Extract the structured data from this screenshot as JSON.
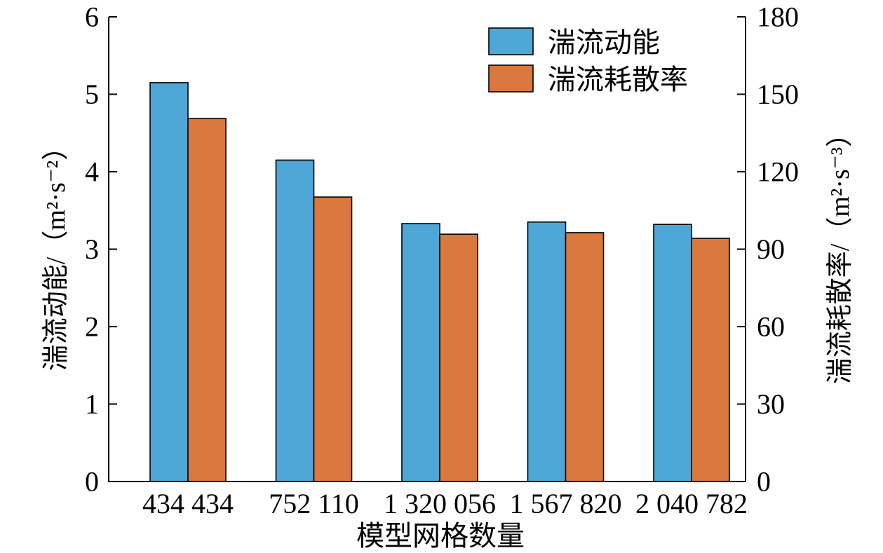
{
  "chart_data": {
    "type": "bar",
    "categories": [
      "434 434",
      "752 110",
      "1 320 056",
      "1 567 820",
      "2 040 782"
    ],
    "series": [
      {
        "name": "湍流动能",
        "secondary_axis": false,
        "color": "#4fa7d8",
        "values": [
          5.15,
          4.15,
          3.33,
          3.35,
          3.32
        ]
      },
      {
        "name": "湍流耗散率",
        "secondary_axis": true,
        "color": "#db783e",
        "values": [
          140.6,
          110.2,
          95.8,
          96.4,
          94.2
        ]
      }
    ],
    "xlabel": "模型网格数量",
    "ylabel": "湍流动能/（m²·s⁻²）",
    "y2label": "湍流耗散率/（m²·s⁻³）",
    "ylim": [
      0,
      6
    ],
    "y2lim": [
      0,
      180
    ],
    "yticks": [
      0,
      1,
      2,
      3,
      4,
      5,
      6
    ],
    "y2ticks": [
      0,
      30,
      60,
      90,
      120,
      150,
      180
    ],
    "grid": false,
    "legend": "top-right"
  }
}
